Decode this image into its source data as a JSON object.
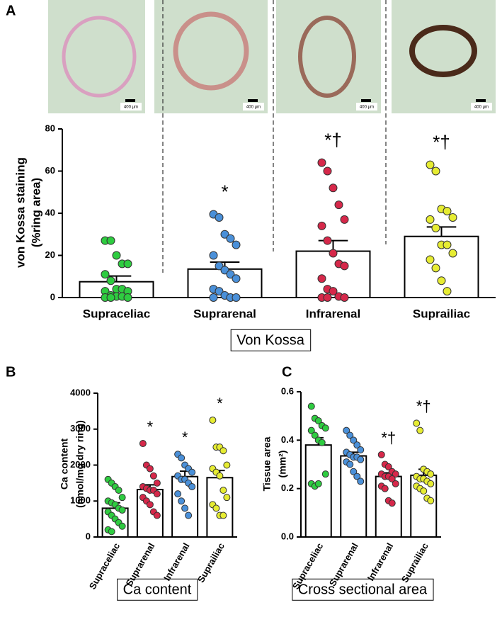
{
  "images": [
    {
      "scale_bar": "400 µm"
    },
    {
      "scale_bar": "400 µm"
    },
    {
      "scale_bar": "400 µm"
    },
    {
      "scale_bar": "400 µm"
    }
  ],
  "chart_data": [
    {
      "type": "bar",
      "panel_label": "A",
      "ylabel": [
        "von Kossa staining",
        "(%ring area)"
      ],
      "box_label": "Von Kossa",
      "categories": [
        "Supraceliac",
        "Suprarenal",
        "Infrarenal",
        "Suprailiac"
      ],
      "values": [
        7.5,
        13.5,
        22,
        29
      ],
      "errors": [
        2.7,
        3.3,
        5,
        4.5
      ],
      "point_colors": [
        "#2ecc40",
        "#4a90d9",
        "#d6284a",
        "#e6ec32"
      ],
      "points": [
        [
          27,
          27,
          20,
          16,
          16,
          11,
          8,
          4,
          4,
          3,
          3,
          1,
          0.5,
          0.5,
          0,
          0,
          0
        ],
        [
          39.5,
          38,
          30,
          28,
          25,
          20,
          15,
          13,
          11,
          9,
          4,
          3,
          1,
          0,
          0,
          0
        ],
        [
          64,
          60,
          52,
          44,
          37,
          34,
          27,
          21,
          16,
          15,
          9,
          4,
          3,
          0.5,
          0,
          0,
          0
        ],
        [
          63,
          60,
          42,
          41,
          38,
          37,
          33,
          25,
          25,
          21,
          18,
          14,
          8,
          3
        ]
      ],
      "annotations": [
        null,
        "*",
        "*†",
        "*†"
      ],
      "ylim": [
        0,
        80
      ],
      "yticks": [
        0,
        20,
        40,
        60,
        80
      ]
    },
    {
      "type": "bar",
      "panel_label": "B",
      "ylabel": [
        "Ca content",
        "(nmol/mg dry ring)"
      ],
      "box_label": "Ca content",
      "categories": [
        "Supraceliac",
        "Suprarenal",
        "Infrarenal",
        "Suprailiac"
      ],
      "values": [
        800,
        1320,
        1680,
        1650
      ],
      "errors": [
        150,
        130,
        150,
        200
      ],
      "point_colors": [
        "#2ecc40",
        "#d6284a",
        "#4a90d9",
        "#e6ec32"
      ],
      "points": [
        [
          1600,
          1500,
          1400,
          1300,
          1100,
          1000,
          950,
          900,
          800,
          750,
          700,
          600,
          500,
          400,
          300,
          200,
          150
        ],
        [
          2600,
          2000,
          1900,
          1700,
          1500,
          1400,
          1350,
          1300,
          1300,
          1200,
          1100,
          1000,
          900,
          700,
          600
        ],
        [
          2300,
          2200,
          2000,
          1900,
          1800,
          1700,
          1600,
          1600,
          1500,
          1400,
          1200,
          1000,
          800,
          600
        ],
        [
          3250,
          2500,
          2500,
          2400,
          2000,
          1900,
          1800,
          1700,
          1300,
          1100,
          900,
          800,
          600,
          600
        ]
      ],
      "annotations": [
        null,
        "*",
        "*",
        "*"
      ],
      "ylim": [
        0,
        4000
      ],
      "yticks": [
        0,
        1000,
        2000,
        3000,
        4000
      ]
    },
    {
      "type": "bar",
      "panel_label": "C",
      "ylabel": [
        "Tissue area",
        "(mm²)"
      ],
      "box_label": "Cross sectional area",
      "categories": [
        "Supraceliac",
        "Suprarenal",
        "Infrarenal",
        "Suprailiac"
      ],
      "values": [
        0.38,
        0.335,
        0.25,
        0.255
      ],
      "errors": [
        0.03,
        0.015,
        0.015,
        0.025
      ],
      "point_colors": [
        "#2ecc40",
        "#4a90d9",
        "#d6284a",
        "#e6ec32"
      ],
      "points": [
        [
          0.54,
          0.49,
          0.48,
          0.46,
          0.45,
          0.44,
          0.42,
          0.4,
          0.39,
          0.26,
          0.22,
          0.21,
          0.22
        ],
        [
          0.44,
          0.42,
          0.4,
          0.38,
          0.36,
          0.35,
          0.34,
          0.33,
          0.33,
          0.32,
          0.31,
          0.3,
          0.27,
          0.25,
          0.23
        ],
        [
          0.34,
          0.3,
          0.29,
          0.27,
          0.26,
          0.26,
          0.25,
          0.25,
          0.24,
          0.22,
          0.21,
          0.2,
          0.15,
          0.14
        ],
        [
          0.47,
          0.44,
          0.28,
          0.27,
          0.26,
          0.25,
          0.24,
          0.24,
          0.23,
          0.22,
          0.21,
          0.2,
          0.19,
          0.16,
          0.15
        ]
      ],
      "annotations": [
        null,
        null,
        "*†",
        "*†"
      ],
      "ylim": [
        0,
        0.6
      ],
      "yticks": [
        {
          "value": 0,
          "label": "0.0"
        },
        0.2,
        0.4,
        0.6
      ]
    }
  ]
}
